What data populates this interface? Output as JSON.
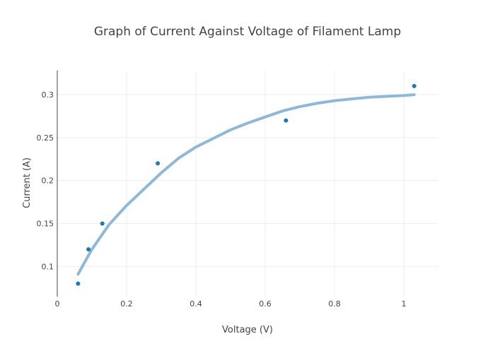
{
  "chart_data": {
    "type": "scatter",
    "title": "Graph of Current Against Voltage of Filament Lamp",
    "xlabel": "Voltage (V)",
    "ylabel": "Current (A)",
    "xlim": [
      0,
      1.1
    ],
    "ylim": [
      0.065,
      0.328
    ],
    "x_ticks": [
      0,
      0.2,
      0.4,
      0.6,
      0.8,
      1
    ],
    "x_tick_labels": [
      "0",
      "0.2",
      "0.4",
      "0.6",
      "0.8",
      "1"
    ],
    "y_ticks": [
      0.1,
      0.15,
      0.2,
      0.25,
      0.3
    ],
    "y_tick_labels": [
      "0.1",
      "0.15",
      "0.2",
      "0.25",
      "0.3"
    ],
    "grid": true,
    "series": [
      {
        "kind": "scatter",
        "color": "#1f77b4",
        "x": [
          0.06,
          0.09,
          0.13,
          0.29,
          0.66,
          1.03
        ],
        "y": [
          0.08,
          0.12,
          0.15,
          0.22,
          0.27,
          0.31
        ]
      },
      {
        "kind": "line",
        "color": "#8db8d8",
        "x": [
          0.06,
          0.1,
          0.15,
          0.2,
          0.25,
          0.3,
          0.35,
          0.4,
          0.45,
          0.5,
          0.55,
          0.6,
          0.65,
          0.7,
          0.75,
          0.8,
          0.85,
          0.9,
          0.95,
          1.0,
          1.03
        ],
        "y": [
          0.091,
          0.12,
          0.149,
          0.171,
          0.19,
          0.209,
          0.226,
          0.239,
          0.249,
          0.259,
          0.267,
          0.274,
          0.281,
          0.286,
          0.29,
          0.293,
          0.295,
          0.297,
          0.298,
          0.299,
          0.3
        ]
      }
    ]
  }
}
